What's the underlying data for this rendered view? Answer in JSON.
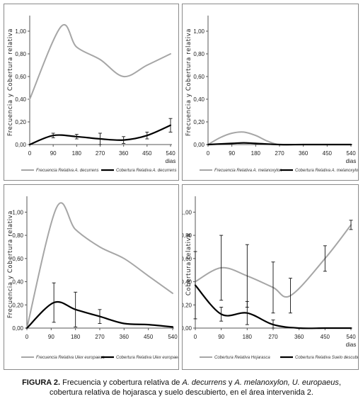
{
  "caption": {
    "label": "FIGURA 2.",
    "p1": " Frecuencia y cobertura relativa de ",
    "p2": "A. decurrens",
    "p3": " y ",
    "p4": "A. melanoxylon, U. europaeus",
    "p5": ", cobertura relativa de hojarasca y suelo descubierto, en el área intervenida 2."
  },
  "colors": {
    "frecuencia": "#a6a6a6",
    "cobertura": "#000000",
    "axis": "#555555"
  },
  "chart_data": [
    {
      "type": "line",
      "ylabel": "Frecuencia  y  Cobertura  relativa",
      "xunit": "dias",
      "x_ticks": [
        0,
        90,
        180,
        270,
        360,
        450,
        540
      ],
      "y_ticks": [
        "0,00",
        "0,20",
        "0,40",
        "0,60",
        "0,80",
        "1,00"
      ],
      "ylim": [
        0,
        1.1
      ],
      "series": [
        {
          "name": "Frecuencia Relativa A. decurrens",
          "color": "#a6a6a6",
          "width": 2,
          "x": [
            0,
            120,
            180,
            270,
            360,
            450,
            540
          ],
          "y": [
            0.4,
            1.04,
            0.86,
            0.75,
            0.6,
            0.7,
            0.8
          ]
        },
        {
          "name": "Cobertura Relativa A. decurrens",
          "color": "#000000",
          "width": 2.2,
          "x": [
            0,
            90,
            180,
            270,
            360,
            450,
            540
          ],
          "y": [
            0.0,
            0.08,
            0.07,
            0.05,
            0.04,
            0.08,
            0.17
          ],
          "err": [
            0,
            0.02,
            0.02,
            0.05,
            0.03,
            0.03,
            0.06
          ]
        }
      ]
    },
    {
      "type": "line",
      "ylabel": "Frecuencia  y  Cobertura  relativa",
      "xunit": "dias",
      "x_ticks": [
        0,
        90,
        180,
        270,
        360,
        450,
        540
      ],
      "y_ticks": [
        "0,00",
        "0,20",
        "0,40",
        "0,60",
        "0,80",
        "1,00"
      ],
      "ylim": [
        0,
        1.1
      ],
      "series": [
        {
          "name": "Frecuencia Relativa A. melanoxylon",
          "color": "#a6a6a6",
          "width": 2,
          "x": [
            0,
            45,
            90,
            135,
            180,
            225,
            270,
            360,
            450,
            540
          ],
          "y": [
            0.0,
            0.06,
            0.1,
            0.11,
            0.08,
            0.03,
            0.0,
            0.0,
            0.0,
            0.0
          ]
        },
        {
          "name": "Cobertura Relativa A. melanoxylon",
          "color": "#000000",
          "width": 2.2,
          "x": [
            0,
            90,
            135,
            180,
            270,
            360,
            450,
            540
          ],
          "y": [
            0.0,
            0.01,
            0.015,
            0.01,
            0.0,
            0.0,
            0.0,
            0.0
          ]
        }
      ]
    },
    {
      "type": "line",
      "ylabel": "Frecuencia  y  Cobertura  relativa",
      "xunit": "",
      "x_ticks": [
        0,
        90,
        180,
        270,
        360,
        450,
        540
      ],
      "y_ticks": [
        "0,00",
        "0,20",
        "0,40",
        "0,60",
        "0,80",
        "1,00"
      ],
      "ylim": [
        0,
        1.1
      ],
      "series": [
        {
          "name": "Frecuencia Relativa Ulex europaeus",
          "color": "#a6a6a6",
          "width": 2,
          "x": [
            0,
            110,
            180,
            270,
            360,
            450,
            540
          ],
          "y": [
            0.0,
            1.04,
            0.85,
            0.7,
            0.6,
            0.45,
            0.3
          ]
        },
        {
          "name": "Cobertura Relativa Ulex europaeus",
          "color": "#000000",
          "width": 2.2,
          "x": [
            0,
            100,
            180,
            270,
            360,
            450,
            540
          ],
          "y": [
            0.0,
            0.22,
            0.16,
            0.1,
            0.04,
            0.03,
            0.01
          ],
          "err": [
            0,
            0.17,
            0.15,
            0.06,
            0,
            0,
            0
          ]
        }
      ]
    },
    {
      "type": "line",
      "ylabel": "Cobertura relativa",
      "xunit": "dias",
      "x_ticks": [
        0,
        90,
        180,
        270,
        360,
        450,
        540
      ],
      "y_ticks": [
        "0,00",
        "0,20",
        "0,40",
        "0,60",
        "0,80",
        "1,00"
      ],
      "ylim": [
        0,
        1.1
      ],
      "series": [
        {
          "name": "Cobertura Relativa Hojarasca",
          "color": "#a6a6a6",
          "width": 2,
          "x": [
            0,
            90,
            180,
            270,
            330,
            450,
            540
          ],
          "y": [
            0.4,
            0.52,
            0.45,
            0.35,
            0.28,
            0.6,
            0.89
          ],
          "err": [
            0,
            0.28,
            0.27,
            0.22,
            0.15,
            0.11,
            0.04
          ]
        },
        {
          "name": "Cobertura Relativa Suelo descubierto",
          "color": "#000000",
          "width": 2.2,
          "x": [
            0,
            90,
            180,
            270,
            360,
            450,
            540
          ],
          "y": [
            0.37,
            0.12,
            0.13,
            0.03,
            0.0,
            0.0,
            0.0
          ],
          "err": [
            0.29,
            0.06,
            0.1,
            0.04,
            0,
            0,
            0
          ]
        }
      ]
    }
  ]
}
